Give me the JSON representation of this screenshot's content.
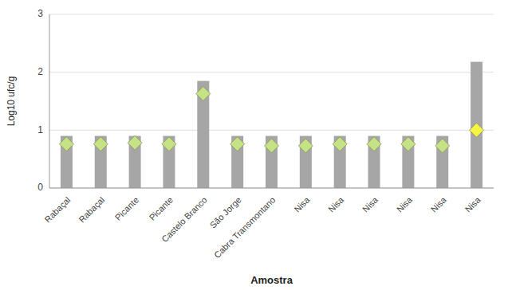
{
  "chart_data": {
    "type": "bar",
    "xlabel": "Amostra",
    "ylabel": "Log10 ufc/g",
    "categories": [
      "Rabaçal",
      "Rabaçal",
      "Picante",
      "Picante",
      "Castelo Branco",
      "São Jorge",
      "Cabra Transmontano",
      "Nisa",
      "Nisa",
      "Nisa",
      "Nisa",
      "Nisa",
      "Nisa"
    ],
    "series": [
      {
        "type": "bar",
        "color": "#a6a6a6",
        "values": [
          0.9,
          0.9,
          0.9,
          0.9,
          1.85,
          0.9,
          0.9,
          0.9,
          0.9,
          0.9,
          0.9,
          0.9,
          2.18
        ]
      },
      {
        "type": "scatter",
        "marker": "diamond",
        "colors": [
          "#c5e384",
          "#c5e384",
          "#c5e384",
          "#c5e384",
          "#c5e384",
          "#c5e384",
          "#c5e384",
          "#c5e384",
          "#c5e384",
          "#c5e384",
          "#c5e384",
          "#c5e384",
          "#f5f542"
        ],
        "values": [
          0.76,
          0.76,
          0.78,
          0.76,
          1.63,
          0.76,
          0.73,
          0.73,
          0.76,
          0.76,
          0.76,
          0.73,
          1.0
        ]
      }
    ],
    "ylim": [
      0,
      3
    ],
    "yticks": [
      0,
      1,
      2,
      3
    ],
    "grid": true
  }
}
